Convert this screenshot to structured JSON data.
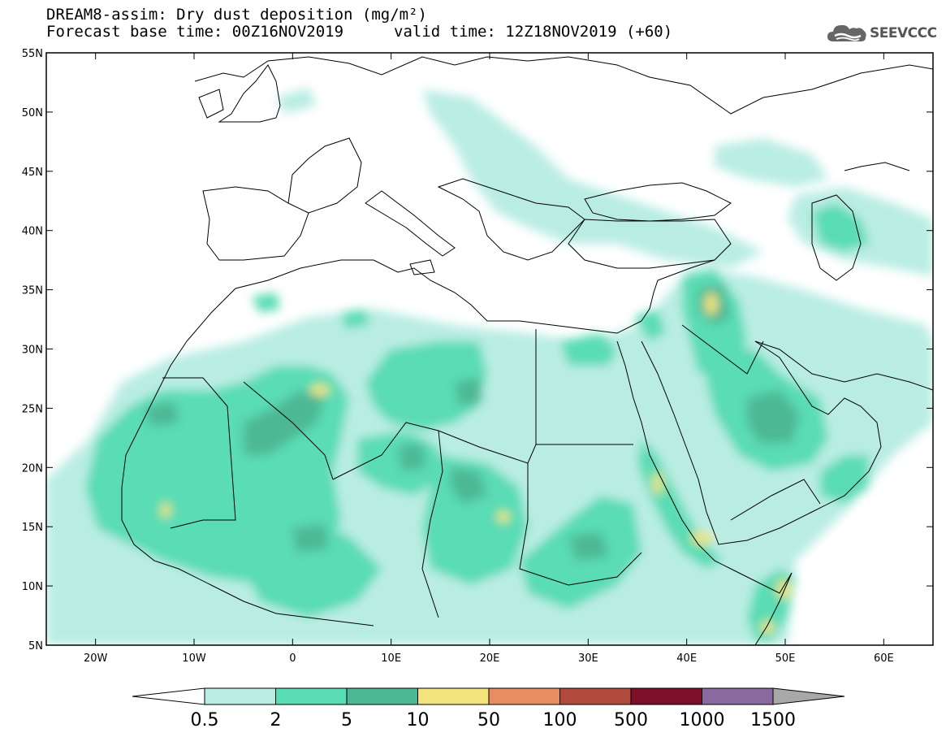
{
  "header": {
    "title": "DREAM8-assim: Dry dust deposition (mg/m²)",
    "base_time": "Forecast base time: 00Z16NOV2019",
    "valid_time": "valid time: 12Z18NOV2019 (+60)"
  },
  "logo": {
    "text": "SEEVCCC",
    "icon": "cloud-logo-icon"
  },
  "map": {
    "lon_range": [
      -25,
      65
    ],
    "lat_range": [
      5,
      55
    ],
    "lat_ticks": [
      {
        "value": 55,
        "label": "55N"
      },
      {
        "value": 50,
        "label": "50N"
      },
      {
        "value": 45,
        "label": "45N"
      },
      {
        "value": 40,
        "label": "40N"
      },
      {
        "value": 35,
        "label": "35N"
      },
      {
        "value": 30,
        "label": "30N"
      },
      {
        "value": 25,
        "label": "25N"
      },
      {
        "value": 20,
        "label": "20N"
      },
      {
        "value": 15,
        "label": "15N"
      },
      {
        "value": 10,
        "label": "10N"
      },
      {
        "value": 5,
        "label": "5N"
      }
    ],
    "lon_ticks": [
      {
        "value": -20,
        "label": "20W"
      },
      {
        "value": -10,
        "label": "10W"
      },
      {
        "value": 0,
        "label": "0"
      },
      {
        "value": 10,
        "label": "10E"
      },
      {
        "value": 20,
        "label": "20E"
      },
      {
        "value": 30,
        "label": "30E"
      },
      {
        "value": 40,
        "label": "40E"
      },
      {
        "value": 50,
        "label": "50E"
      },
      {
        "value": 60,
        "label": "60E"
      }
    ]
  },
  "colorbar": {
    "labels": [
      "0.5",
      "2",
      "5",
      "10",
      "50",
      "100",
      "500",
      "1000",
      "1500"
    ],
    "colors": [
      "#ffffff",
      "#b9ede3",
      "#5adcb4",
      "#4db894",
      "#f2e37a",
      "#e88d63",
      "#b04a3c",
      "#7d0f2b",
      "#8a6a9e",
      "#a8a8a8"
    ]
  },
  "chart_data": {
    "type": "heatmap",
    "variable": "Dry dust deposition (mg/m²)",
    "levels": [
      0.5,
      2,
      5,
      10,
      50,
      100,
      500,
      1000,
      1500
    ],
    "regions": [
      {
        "lon": [
          -18,
          -5
        ],
        "lat": [
          10,
          24
        ],
        "level": 2
      },
      {
        "lon": [
          -12,
          -5
        ],
        "lat": [
          19,
          25
        ],
        "level": 5
      },
      {
        "lon": [
          -13,
          -12
        ],
        "lat": [
          15,
          16
        ],
        "level": 10
      },
      {
        "lon": [
          -5,
          6
        ],
        "lat": [
          18,
          27
        ],
        "level": 5
      },
      {
        "lon": [
          2,
          4
        ],
        "lat": [
          25,
          26
        ],
        "level": 10
      },
      {
        "lon": [
          10,
          20
        ],
        "lat": [
          24,
          31
        ],
        "level": 2
      },
      {
        "lon": [
          8,
          14
        ],
        "lat": [
          19,
          24
        ],
        "level": 5
      },
      {
        "lon": [
          16,
          23
        ],
        "lat": [
          12,
          21
        ],
        "level": 5
      },
      {
        "lon": [
          20,
          22
        ],
        "lat": [
          15,
          16
        ],
        "level": 10
      },
      {
        "lon": [
          25,
          36
        ],
        "lat": [
          8,
          17
        ],
        "level": 2
      },
      {
        "lon": [
          30,
          33
        ],
        "lat": [
          12,
          14
        ],
        "level": 5
      },
      {
        "lon": [
          36,
          39
        ],
        "lat": [
          15,
          19
        ],
        "level": 10
      },
      {
        "lon": [
          39,
          43
        ],
        "lat": [
          11,
          14
        ],
        "level": 10
      },
      {
        "lon": [
          46,
          50
        ],
        "lat": [
          6,
          11
        ],
        "level": 10
      },
      {
        "lon": [
          41,
          47
        ],
        "lat": [
          26,
          36
        ],
        "level": 5
      },
      {
        "lon": [
          42,
          43
        ],
        "lat": [
          32,
          34
        ],
        "level": 10
      },
      {
        "lon": [
          44,
          52
        ],
        "lat": [
          18,
          27
        ],
        "level": 5
      },
      {
        "lon": [
          50,
          56
        ],
        "lat": [
          39,
          42
        ],
        "level": 5
      }
    ]
  }
}
